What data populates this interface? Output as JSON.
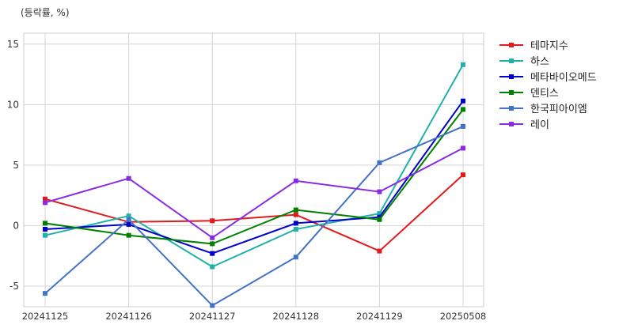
{
  "chart_data": {
    "type": "line",
    "ylabel": "(등락률, %)",
    "categories": [
      "20241125",
      "20241126",
      "20241127",
      "20241128",
      "20241129",
      "20250508"
    ],
    "y_ticks": [
      15,
      10,
      5,
      0,
      -5
    ],
    "ylim": [
      -6.7,
      15.9
    ],
    "grid": true,
    "legend_position": "right",
    "series": [
      {
        "name": "테마지수",
        "color": "#e31a1c",
        "values": [
          2.2,
          0.3,
          0.4,
          0.9,
          -2.1,
          4.2
        ]
      },
      {
        "name": "하스",
        "color": "#20b2aa",
        "values": [
          -0.8,
          0.8,
          -3.4,
          -0.3,
          1.0,
          13.3
        ]
      },
      {
        "name": "메타바이오메드",
        "color": "#0000cd",
        "values": [
          -0.3,
          0.1,
          -2.3,
          0.2,
          0.7,
          10.3
        ]
      },
      {
        "name": "덴티스",
        "color": "#008000",
        "values": [
          0.2,
          -0.8,
          -1.5,
          1.3,
          0.5,
          9.6
        ]
      },
      {
        "name": "한국피아이엠",
        "color": "#4472c4",
        "values": [
          -5.6,
          0.5,
          -6.6,
          -2.6,
          5.2,
          8.2
        ]
      },
      {
        "name": "레이",
        "color": "#8a2be2",
        "values": [
          1.9,
          3.9,
          -1.0,
          3.7,
          2.8,
          6.4
        ]
      }
    ]
  }
}
